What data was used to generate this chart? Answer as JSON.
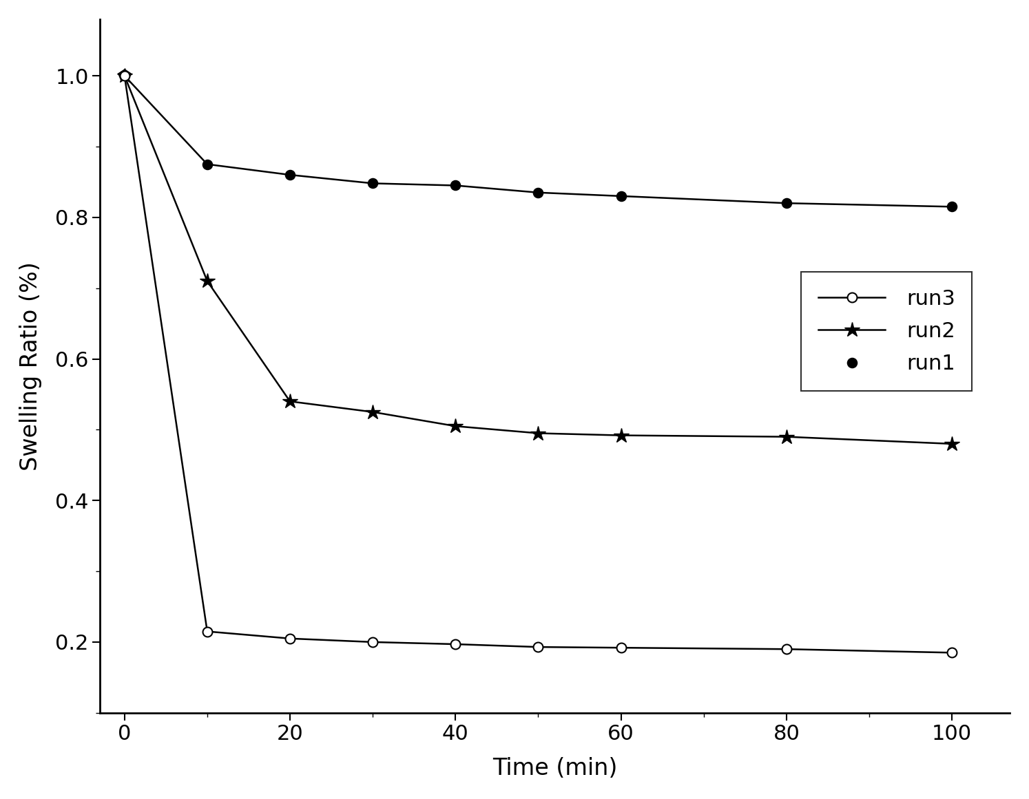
{
  "title": "",
  "xlabel": "Time (min)",
  "ylabel": "Swelling Ratio (%)",
  "xlim": [
    -3,
    107
  ],
  "ylim": [
    0.1,
    1.08
  ],
  "xticks": [
    0,
    20,
    40,
    60,
    80,
    100
  ],
  "yticks": [
    0.2,
    0.4,
    0.6,
    0.8,
    1.0
  ],
  "run1": {
    "label": "run1",
    "x": [
      0,
      10,
      20,
      30,
      40,
      50,
      60,
      80,
      100
    ],
    "y": [
      1.0,
      0.875,
      0.86,
      0.848,
      0.845,
      0.835,
      0.83,
      0.82,
      0.815
    ],
    "color": "black",
    "linewidth": 1.8
  },
  "run2": {
    "label": "run2",
    "x": [
      0,
      10,
      20,
      30,
      40,
      50,
      60,
      80,
      100
    ],
    "y": [
      1.0,
      0.71,
      0.54,
      0.525,
      0.505,
      0.495,
      0.492,
      0.49,
      0.48
    ],
    "color": "black",
    "linewidth": 1.8
  },
  "run3": {
    "label": "run3",
    "x": [
      0,
      10,
      20,
      30,
      40,
      50,
      60,
      80,
      100
    ],
    "y": [
      1.0,
      0.215,
      0.205,
      0.2,
      0.197,
      0.193,
      0.192,
      0.19,
      0.185
    ],
    "color": "black",
    "linewidth": 1.8
  },
  "legend_order": [
    "run3",
    "run2",
    "run1"
  ],
  "background_color": "#ffffff",
  "font_size": 22
}
